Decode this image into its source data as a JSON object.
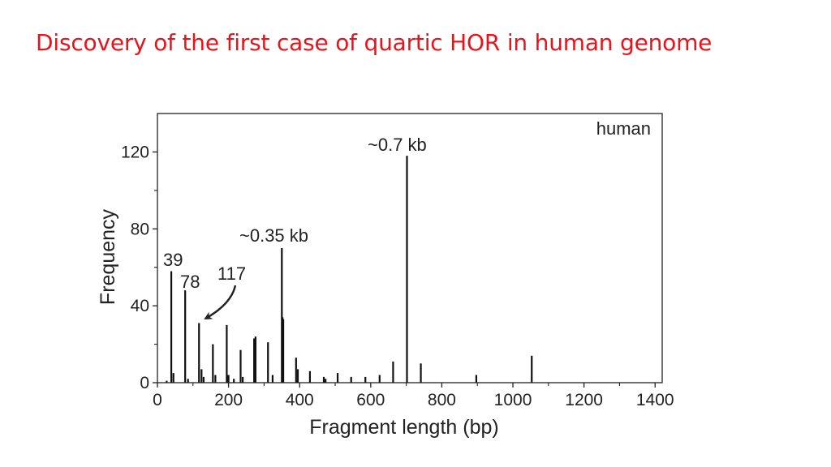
{
  "slide": {
    "title": "Discovery of the first case of quartic HOR in human genome"
  },
  "chart_data": {
    "type": "bar",
    "xlabel": "Fragment length (bp)",
    "ylabel": "Frequency",
    "xlim": [
      0,
      1420
    ],
    "ylim": [
      0,
      140
    ],
    "xticks": [
      0,
      200,
      400,
      600,
      800,
      1000,
      1200,
      1400
    ],
    "yticks": [
      0,
      40,
      80,
      120
    ],
    "grid": false,
    "legend": "top-right",
    "series": [
      {
        "name": "human",
        "x": [
          26,
          39,
          45,
          78,
          86,
          117,
          124,
          130,
          156,
          163,
          195,
          200,
          215,
          234,
          240,
          272,
          276,
          311,
          324,
          350,
          352,
          354,
          390,
          395,
          429,
          468,
          473,
          507,
          545,
          585,
          625,
          663,
          702,
          741,
          897,
          1053
        ],
        "values": [
          1,
          58,
          5,
          48,
          2,
          31,
          7,
          3,
          20,
          4,
          30,
          4,
          2,
          17,
          3,
          23,
          24,
          21,
          4,
          70,
          34,
          33,
          13,
          7,
          6,
          3,
          2,
          5,
          3,
          3,
          4,
          11,
          118,
          10,
          4,
          14
        ]
      }
    ],
    "annotations": [
      {
        "text": "39",
        "x": 39
      },
      {
        "text": "78",
        "x": 78
      },
      {
        "text": "117",
        "x": 117
      },
      {
        "text": "~0.35 kb",
        "x": 350
      },
      {
        "text": "~0.7 kb",
        "x": 702
      }
    ]
  }
}
